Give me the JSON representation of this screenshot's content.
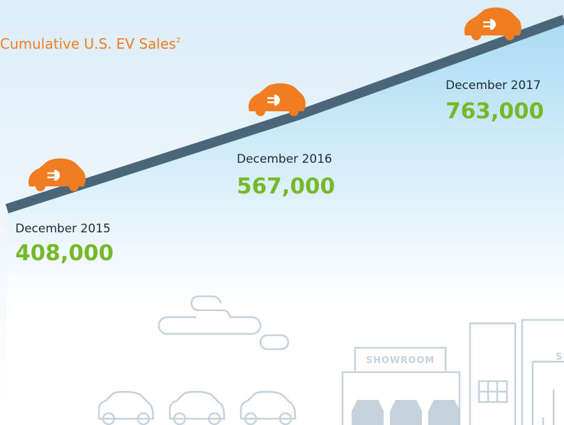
{
  "title": "Cumulative U.S. EV Sales",
  "footnote": "2",
  "milestones": [
    {
      "date": "December 2015",
      "value": "408,000"
    },
    {
      "date": "December 2016",
      "value": "567,000"
    },
    {
      "date": "December 2017",
      "value": "763,000"
    }
  ],
  "signs": [
    "SHOWROOM",
    "SHOWROOM"
  ]
}
